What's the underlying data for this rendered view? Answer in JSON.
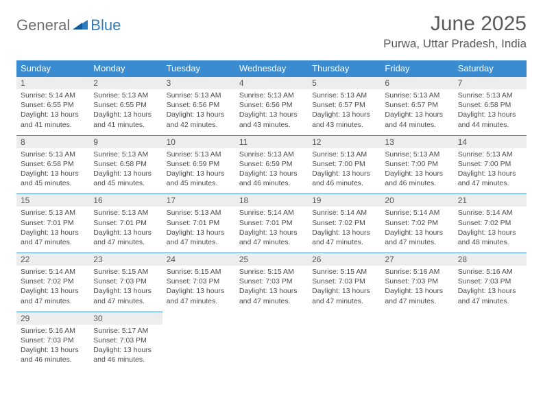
{
  "logo": {
    "general": "General",
    "blue": "Blue"
  },
  "title": "June 2025",
  "location": "Purwa, Uttar Pradesh, India",
  "header_bg": "#3a8bd0",
  "header_fg": "#ffffff",
  "daynum_bg": "#ededed",
  "border_color": "#3a8bd0",
  "text_color": "#4a4a4a",
  "days": [
    "Sunday",
    "Monday",
    "Tuesday",
    "Wednesday",
    "Thursday",
    "Friday",
    "Saturday"
  ],
  "weeks": [
    [
      {
        "n": "1",
        "sr": "5:14 AM",
        "ss": "6:55 PM",
        "dl": "13 hours and 41 minutes."
      },
      {
        "n": "2",
        "sr": "5:13 AM",
        "ss": "6:55 PM",
        "dl": "13 hours and 41 minutes."
      },
      {
        "n": "3",
        "sr": "5:13 AM",
        "ss": "6:56 PM",
        "dl": "13 hours and 42 minutes."
      },
      {
        "n": "4",
        "sr": "5:13 AM",
        "ss": "6:56 PM",
        "dl": "13 hours and 43 minutes."
      },
      {
        "n": "5",
        "sr": "5:13 AM",
        "ss": "6:57 PM",
        "dl": "13 hours and 43 minutes."
      },
      {
        "n": "6",
        "sr": "5:13 AM",
        "ss": "6:57 PM",
        "dl": "13 hours and 44 minutes."
      },
      {
        "n": "7",
        "sr": "5:13 AM",
        "ss": "6:58 PM",
        "dl": "13 hours and 44 minutes."
      }
    ],
    [
      {
        "n": "8",
        "sr": "5:13 AM",
        "ss": "6:58 PM",
        "dl": "13 hours and 45 minutes."
      },
      {
        "n": "9",
        "sr": "5:13 AM",
        "ss": "6:58 PM",
        "dl": "13 hours and 45 minutes."
      },
      {
        "n": "10",
        "sr": "5:13 AM",
        "ss": "6:59 PM",
        "dl": "13 hours and 45 minutes."
      },
      {
        "n": "11",
        "sr": "5:13 AM",
        "ss": "6:59 PM",
        "dl": "13 hours and 46 minutes."
      },
      {
        "n": "12",
        "sr": "5:13 AM",
        "ss": "7:00 PM",
        "dl": "13 hours and 46 minutes."
      },
      {
        "n": "13",
        "sr": "5:13 AM",
        "ss": "7:00 PM",
        "dl": "13 hours and 46 minutes."
      },
      {
        "n": "14",
        "sr": "5:13 AM",
        "ss": "7:00 PM",
        "dl": "13 hours and 47 minutes."
      }
    ],
    [
      {
        "n": "15",
        "sr": "5:13 AM",
        "ss": "7:01 PM",
        "dl": "13 hours and 47 minutes."
      },
      {
        "n": "16",
        "sr": "5:13 AM",
        "ss": "7:01 PM",
        "dl": "13 hours and 47 minutes."
      },
      {
        "n": "17",
        "sr": "5:13 AM",
        "ss": "7:01 PM",
        "dl": "13 hours and 47 minutes."
      },
      {
        "n": "18",
        "sr": "5:14 AM",
        "ss": "7:01 PM",
        "dl": "13 hours and 47 minutes."
      },
      {
        "n": "19",
        "sr": "5:14 AM",
        "ss": "7:02 PM",
        "dl": "13 hours and 47 minutes."
      },
      {
        "n": "20",
        "sr": "5:14 AM",
        "ss": "7:02 PM",
        "dl": "13 hours and 47 minutes."
      },
      {
        "n": "21",
        "sr": "5:14 AM",
        "ss": "7:02 PM",
        "dl": "13 hours and 48 minutes."
      }
    ],
    [
      {
        "n": "22",
        "sr": "5:14 AM",
        "ss": "7:02 PM",
        "dl": "13 hours and 47 minutes."
      },
      {
        "n": "23",
        "sr": "5:15 AM",
        "ss": "7:03 PM",
        "dl": "13 hours and 47 minutes."
      },
      {
        "n": "24",
        "sr": "5:15 AM",
        "ss": "7:03 PM",
        "dl": "13 hours and 47 minutes."
      },
      {
        "n": "25",
        "sr": "5:15 AM",
        "ss": "7:03 PM",
        "dl": "13 hours and 47 minutes."
      },
      {
        "n": "26",
        "sr": "5:15 AM",
        "ss": "7:03 PM",
        "dl": "13 hours and 47 minutes."
      },
      {
        "n": "27",
        "sr": "5:16 AM",
        "ss": "7:03 PM",
        "dl": "13 hours and 47 minutes."
      },
      {
        "n": "28",
        "sr": "5:16 AM",
        "ss": "7:03 PM",
        "dl": "13 hours and 47 minutes."
      }
    ],
    [
      {
        "n": "29",
        "sr": "5:16 AM",
        "ss": "7:03 PM",
        "dl": "13 hours and 46 minutes."
      },
      {
        "n": "30",
        "sr": "5:17 AM",
        "ss": "7:03 PM",
        "dl": "13 hours and 46 minutes."
      },
      null,
      null,
      null,
      null,
      null
    ]
  ],
  "labels": {
    "sunrise": "Sunrise: ",
    "sunset": "Sunset: ",
    "daylight": "Daylight: "
  }
}
